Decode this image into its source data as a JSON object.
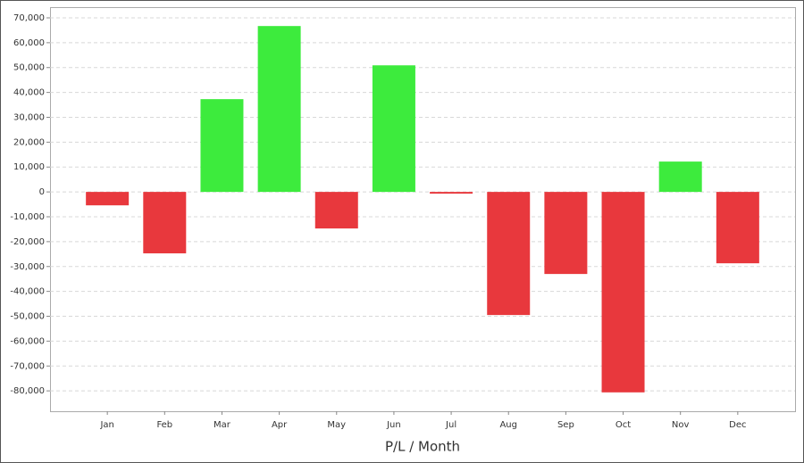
{
  "chart_data": {
    "type": "bar",
    "x_label": "P/L / Month",
    "categories": [
      "Jan",
      "Feb",
      "Mar",
      "Apr",
      "May",
      "Jun",
      "Jul",
      "Aug",
      "Sep",
      "Oct",
      "Nov",
      "Dec"
    ],
    "values": [
      -5400,
      -24700,
      37300,
      66700,
      -14700,
      50900,
      -700,
      -49500,
      -33000,
      -80600,
      12200,
      -28700
    ],
    "colors": [
      "#e8383d",
      "#e8383d",
      "#3deb3d",
      "#3deb3d",
      "#e8383d",
      "#3deb3d",
      "#e8383d",
      "#e8383d",
      "#e8383d",
      "#e8383d",
      "#3deb3d",
      "#e8383d"
    ],
    "ylim": [
      -88200,
      74300
    ],
    "yticks": [
      {
        "value": 70000,
        "label": "70,000"
      },
      {
        "value": 60000,
        "label": "60,000"
      },
      {
        "value": 50000,
        "label": "50,000"
      },
      {
        "value": 40000,
        "label": "40,000"
      },
      {
        "value": 30000,
        "label": "30,000"
      },
      {
        "value": 20000,
        "label": "20,000"
      },
      {
        "value": 10000,
        "label": "10,000"
      },
      0,
      {
        "value": -10000,
        "label": "-10,000"
      },
      {
        "value": -20000,
        "label": "-20,000"
      },
      {
        "value": -30000,
        "label": "-30,000"
      },
      {
        "value": -40000,
        "label": "-40,000"
      },
      {
        "value": -50000,
        "label": "-50,000"
      },
      {
        "value": -60000,
        "label": "-60,000"
      },
      {
        "value": -70000,
        "label": "-70,000"
      },
      {
        "value": -80000,
        "label": "-80,000"
      }
    ],
    "grid": true
  }
}
